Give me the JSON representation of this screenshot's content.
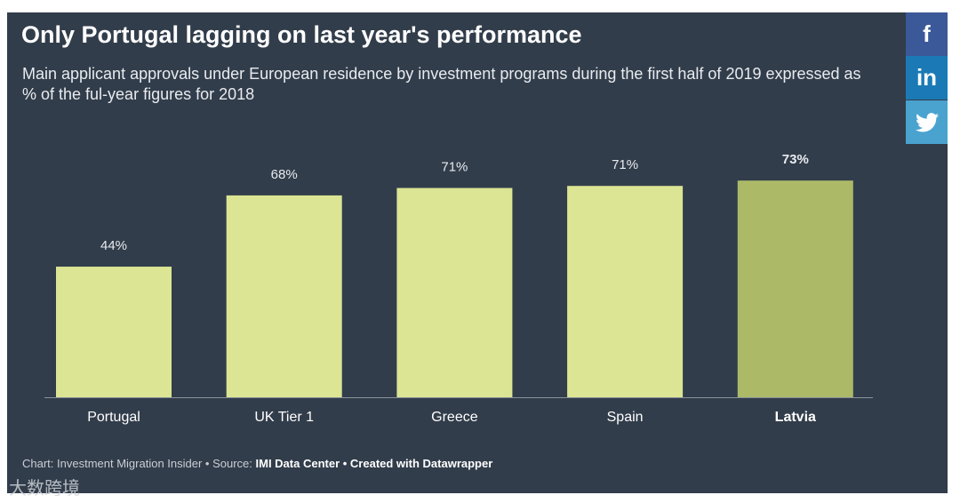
{
  "title": "Only Portugal lagging on last year's performance",
  "subtitle": "Main applicant approvals under European residence by investment programs during the first half of 2019 expressed as % of the ful-year figures for 2018",
  "footer": {
    "chart_label": "Chart: Investment Migration Insider • Source: ",
    "source": "IMI Data Center",
    "created": " • Created with Datawrapper"
  },
  "watermark": "大数跨境",
  "social": {
    "facebook": "f",
    "linkedin": "in",
    "twitter": "twitter-icon"
  },
  "colors": {
    "background": "#323d4b",
    "bar": "#dbe593",
    "highlight": "#acba68",
    "facebook": "#3b5998",
    "linkedin": "#1b7ab5",
    "twitter": "#4aa3cf"
  },
  "chart_data": {
    "type": "bar",
    "categories": [
      "Portugal",
      "UK Tier 1",
      "Greece",
      "Spain",
      "Latvia"
    ],
    "values": [
      44,
      68,
      70.5,
      71.2,
      73
    ],
    "labels": [
      "44%",
      "68%",
      "71%",
      "71%",
      "73%"
    ],
    "highlight": "Latvia",
    "ylim": [
      0,
      100
    ],
    "xlabel": "",
    "ylabel": ""
  }
}
